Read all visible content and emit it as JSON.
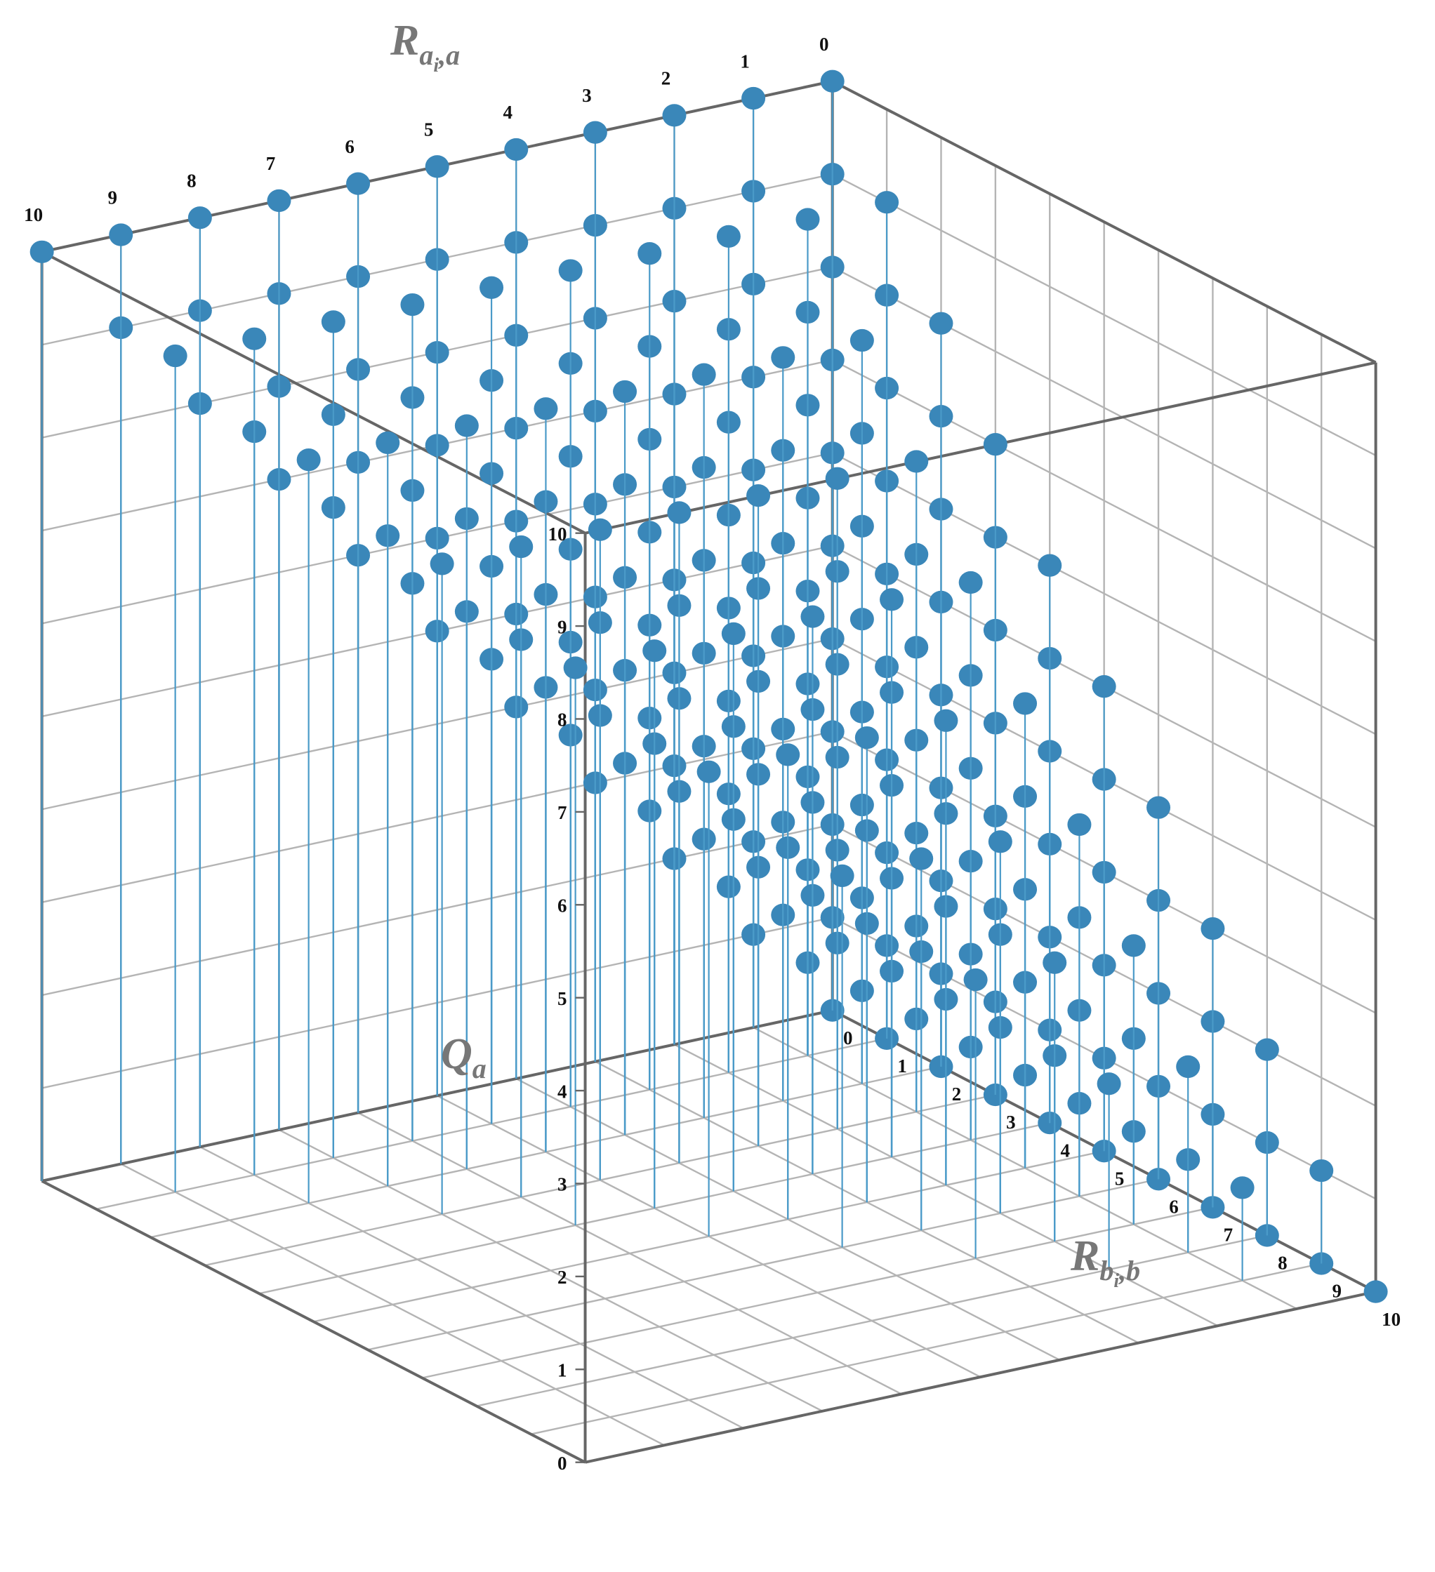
{
  "chart_data": {
    "type": "scatter3d",
    "xlabel": {
      "base": "R",
      "sub": "a",
      "subsub": "i",
      "tail": ",a"
    },
    "ylabel": {
      "base": "R",
      "sub": "b",
      "subsub": "i",
      "tail": ",b"
    },
    "zlabel": {
      "base": "Q",
      "sub": "a"
    },
    "xlim": [
      0,
      10
    ],
    "ylim": [
      0,
      10
    ],
    "zlim": [
      0,
      10
    ],
    "xticks": [
      0,
      1,
      2,
      3,
      4,
      5,
      6,
      7,
      8,
      9,
      10
    ],
    "yticks": [
      0,
      1,
      2,
      3,
      4,
      5,
      6,
      7,
      8,
      9,
      10
    ],
    "zticks": [
      0,
      1,
      2,
      3,
      4,
      5,
      6,
      7,
      8,
      9,
      10
    ],
    "grid": true,
    "color": "#3a87b9",
    "stem_color": "#4a9ac8",
    "columns": [
      {
        "x": 0,
        "y": 0,
        "z": [
          0,
          1,
          2,
          3,
          4,
          5,
          6,
          7,
          8,
          9,
          10
        ]
      },
      {
        "x": 0,
        "y": 1,
        "z": [
          0,
          1,
          2,
          3,
          4,
          5,
          6,
          7,
          8,
          9
        ]
      },
      {
        "x": 0,
        "y": 2,
        "z": [
          0,
          1,
          2,
          3,
          4,
          5,
          6,
          7,
          8
        ]
      },
      {
        "x": 0,
        "y": 3,
        "z": [
          0,
          1,
          2,
          3,
          4,
          5,
          6,
          7
        ]
      },
      {
        "x": 0,
        "y": 4,
        "z": [
          0,
          1,
          2,
          3,
          4,
          5,
          6
        ]
      },
      {
        "x": 0,
        "y": 5,
        "z": [
          0,
          1,
          2,
          3,
          4,
          5
        ]
      },
      {
        "x": 0,
        "y": 6,
        "z": [
          0,
          1,
          2,
          3,
          4
        ]
      },
      {
        "x": 0,
        "y": 7,
        "z": [
          0,
          1,
          2,
          3
        ]
      },
      {
        "x": 0,
        "y": 8,
        "z": [
          0,
          1,
          2
        ]
      },
      {
        "x": 0,
        "y": 9,
        "z": [
          0,
          1
        ]
      },
      {
        "x": 0,
        "y": 10,
        "z": [
          0
        ]
      },
      {
        "x": 1,
        "y": 0,
        "z": [
          1,
          2,
          3,
          4,
          5,
          6,
          7,
          8,
          9,
          10
        ]
      },
      {
        "x": 1,
        "y": 1,
        "z": [
          1,
          2,
          3,
          4,
          5,
          6,
          7,
          8,
          9
        ]
      },
      {
        "x": 1,
        "y": 2,
        "z": [
          1,
          2,
          3,
          4,
          5,
          6,
          7,
          8
        ]
      },
      {
        "x": 1,
        "y": 3,
        "z": [
          1,
          2,
          3,
          4,
          5,
          6,
          7
        ]
      },
      {
        "x": 1,
        "y": 4,
        "z": [
          1,
          2,
          3,
          4,
          5,
          6
        ]
      },
      {
        "x": 1,
        "y": 5,
        "z": [
          1,
          2,
          3,
          4,
          5
        ]
      },
      {
        "x": 1,
        "y": 6,
        "z": [
          1,
          2,
          3,
          4
        ]
      },
      {
        "x": 1,
        "y": 7,
        "z": [
          1,
          2,
          3
        ]
      },
      {
        "x": 1,
        "y": 8,
        "z": [
          1,
          2
        ]
      },
      {
        "x": 1,
        "y": 9,
        "z": [
          1
        ]
      },
      {
        "x": 2,
        "y": 0,
        "z": [
          2,
          3,
          4,
          5,
          6,
          7,
          8,
          9,
          10
        ]
      },
      {
        "x": 2,
        "y": 1,
        "z": [
          2,
          3,
          4,
          5,
          6,
          7,
          8,
          9
        ]
      },
      {
        "x": 2,
        "y": 2,
        "z": [
          2,
          3,
          4,
          5,
          6,
          7,
          8
        ]
      },
      {
        "x": 2,
        "y": 3,
        "z": [
          2,
          3,
          4,
          5,
          6,
          7
        ]
      },
      {
        "x": 2,
        "y": 4,
        "z": [
          2,
          3,
          4,
          5,
          6
        ]
      },
      {
        "x": 2,
        "y": 5,
        "z": [
          2,
          3,
          4,
          5
        ]
      },
      {
        "x": 2,
        "y": 6,
        "z": [
          2,
          3,
          4
        ]
      },
      {
        "x": 2,
        "y": 7,
        "z": [
          2,
          3
        ]
      },
      {
        "x": 2,
        "y": 8,
        "z": [
          2
        ]
      },
      {
        "x": 3,
        "y": 0,
        "z": [
          3,
          4,
          5,
          6,
          7,
          8,
          9,
          10
        ]
      },
      {
        "x": 3,
        "y": 1,
        "z": [
          3,
          4,
          5,
          6,
          7,
          8,
          9
        ]
      },
      {
        "x": 3,
        "y": 2,
        "z": [
          3,
          4,
          5,
          6,
          7,
          8
        ]
      },
      {
        "x": 3,
        "y": 3,
        "z": [
          3,
          4,
          5,
          6,
          7
        ]
      },
      {
        "x": 3,
        "y": 4,
        "z": [
          3,
          4,
          5,
          6
        ]
      },
      {
        "x": 3,
        "y": 5,
        "z": [
          3,
          4,
          5
        ]
      },
      {
        "x": 3,
        "y": 6,
        "z": [
          3,
          4
        ]
      },
      {
        "x": 3,
        "y": 7,
        "z": [
          3
        ]
      },
      {
        "x": 4,
        "y": 0,
        "z": [
          4,
          5,
          6,
          7,
          8,
          9,
          10
        ]
      },
      {
        "x": 4,
        "y": 1,
        "z": [
          4,
          5,
          6,
          7,
          8,
          9
        ]
      },
      {
        "x": 4,
        "y": 2,
        "z": [
          4,
          5,
          6,
          7,
          8
        ]
      },
      {
        "x": 4,
        "y": 3,
        "z": [
          4,
          5,
          6,
          7
        ]
      },
      {
        "x": 4,
        "y": 4,
        "z": [
          4,
          5,
          6
        ]
      },
      {
        "x": 4,
        "y": 5,
        "z": [
          4,
          5
        ]
      },
      {
        "x": 4,
        "y": 6,
        "z": [
          4
        ]
      },
      {
        "x": 5,
        "y": 0,
        "z": [
          5,
          6,
          7,
          8,
          9,
          10
        ]
      },
      {
        "x": 5,
        "y": 1,
        "z": [
          5,
          6,
          7,
          8,
          9
        ]
      },
      {
        "x": 5,
        "y": 2,
        "z": [
          5,
          6,
          7,
          8
        ]
      },
      {
        "x": 5,
        "y": 3,
        "z": [
          5,
          6,
          7
        ]
      },
      {
        "x": 5,
        "y": 4,
        "z": [
          5,
          6
        ]
      },
      {
        "x": 5,
        "y": 5,
        "z": [
          5
        ]
      },
      {
        "x": 6,
        "y": 0,
        "z": [
          6,
          7,
          8,
          9,
          10
        ]
      },
      {
        "x": 6,
        "y": 1,
        "z": [
          6,
          7,
          8,
          9
        ]
      },
      {
        "x": 6,
        "y": 2,
        "z": [
          6,
          7,
          8
        ]
      },
      {
        "x": 6,
        "y": 3,
        "z": [
          6,
          7
        ]
      },
      {
        "x": 6,
        "y": 4,
        "z": [
          6
        ]
      },
      {
        "x": 7,
        "y": 0,
        "z": [
          7,
          8,
          9,
          10
        ]
      },
      {
        "x": 7,
        "y": 1,
        "z": [
          7,
          8,
          9
        ]
      },
      {
        "x": 7,
        "y": 2,
        "z": [
          7,
          8
        ]
      },
      {
        "x": 7,
        "y": 3,
        "z": [
          7
        ]
      },
      {
        "x": 8,
        "y": 0,
        "z": [
          8,
          9,
          10
        ]
      },
      {
        "x": 8,
        "y": 1,
        "z": [
          8,
          9
        ]
      },
      {
        "x": 8,
        "y": 2,
        "z": [
          8
        ]
      },
      {
        "x": 9,
        "y": 0,
        "z": [
          9,
          10
        ]
      },
      {
        "x": 9,
        "y": 1,
        "z": [
          9
        ]
      },
      {
        "x": 10,
        "y": 0,
        "z": [
          10
        ]
      }
    ]
  }
}
